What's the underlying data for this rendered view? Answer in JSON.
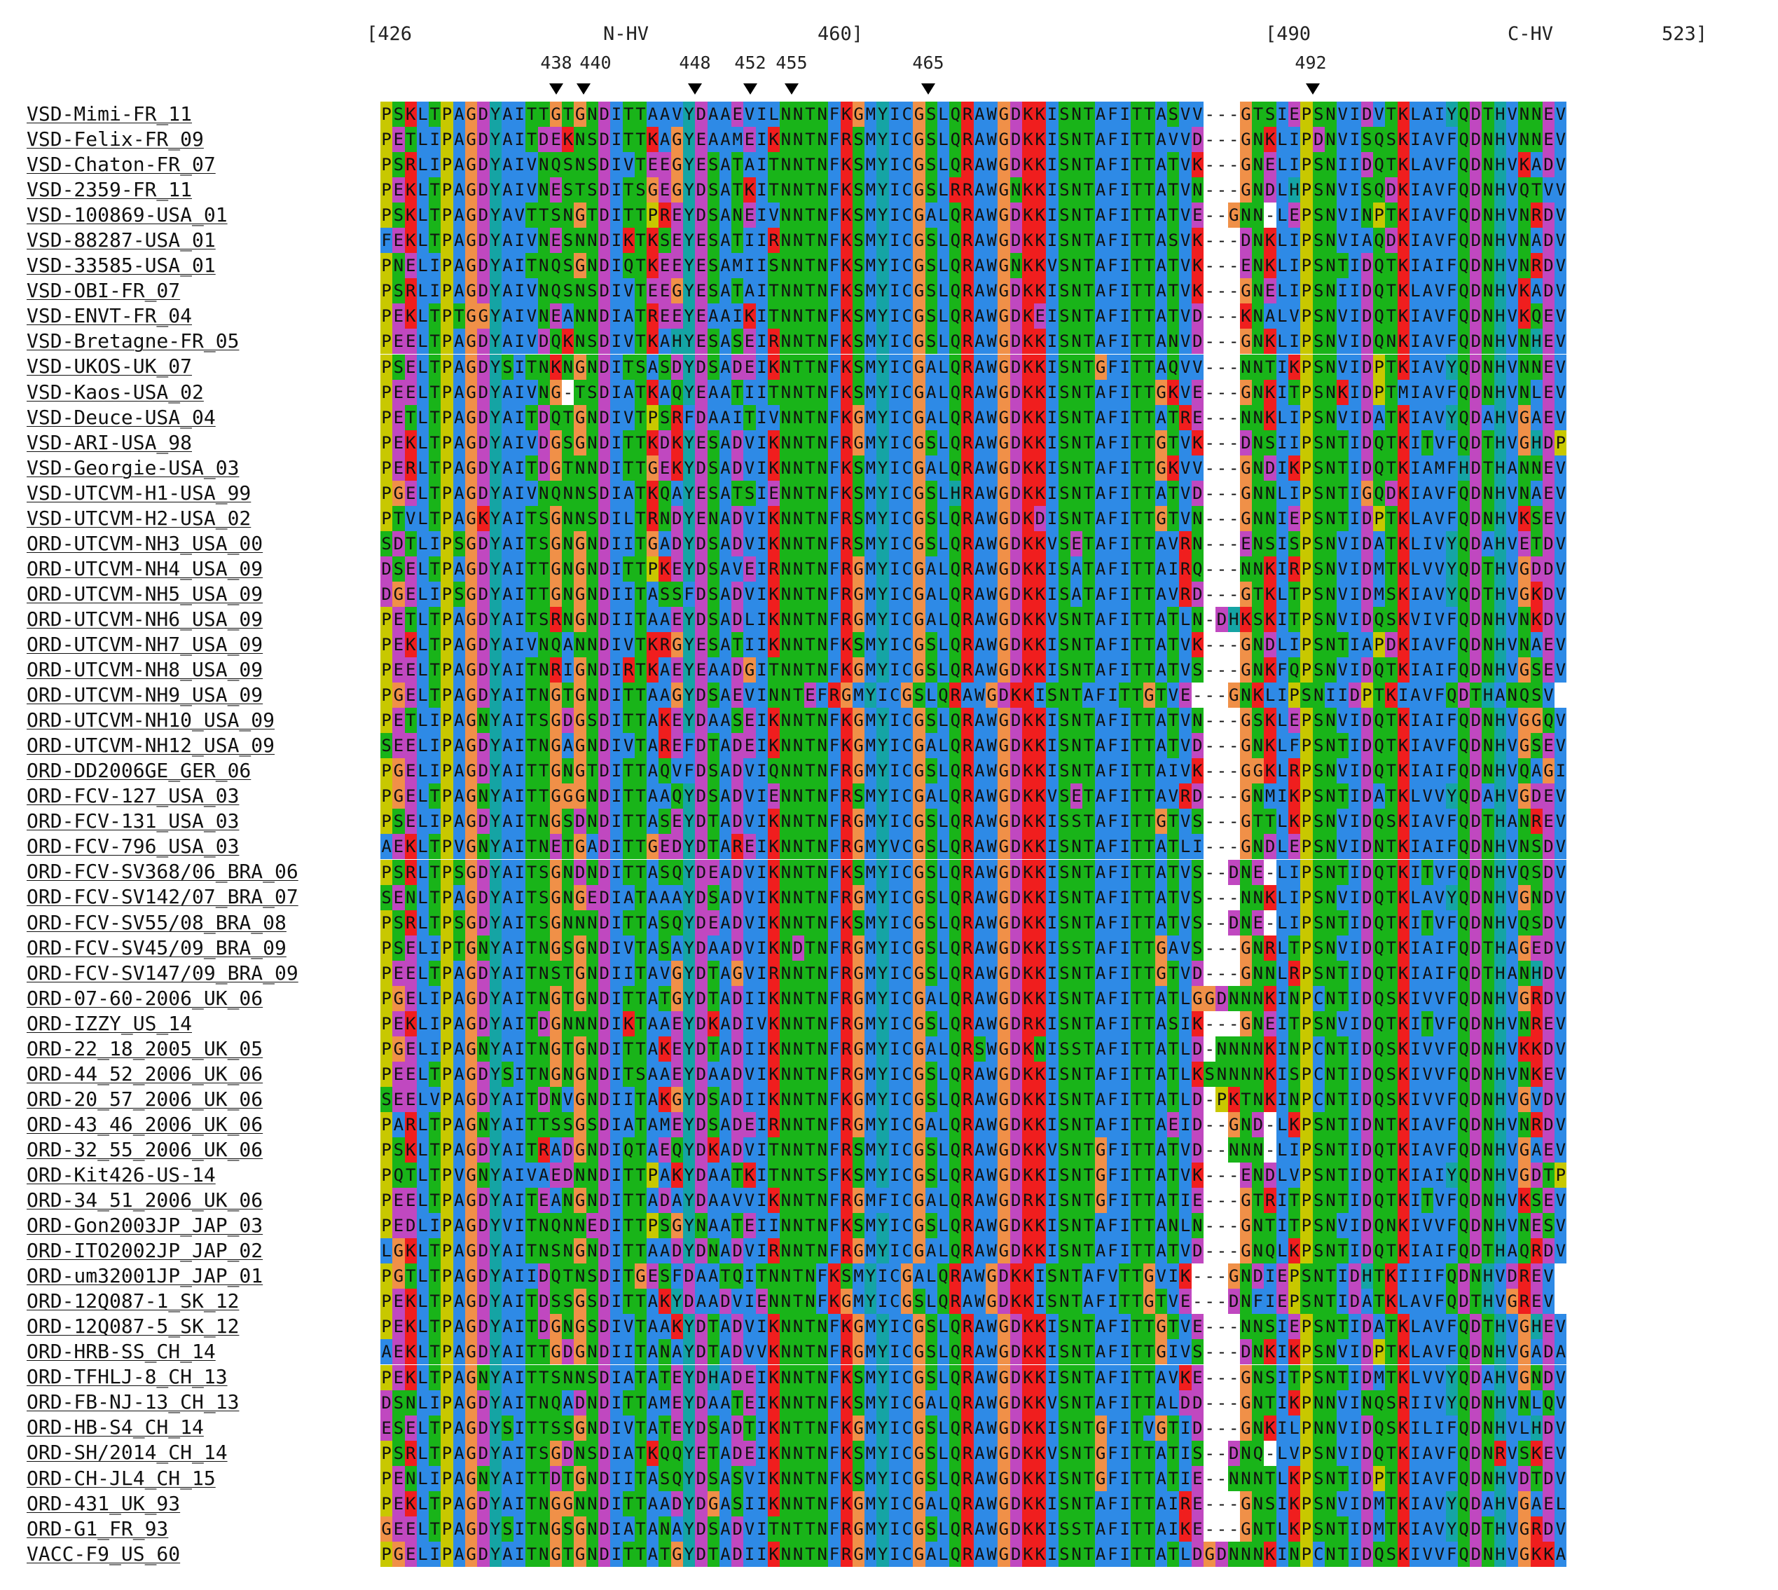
{
  "header": {
    "range_start": "[426",
    "region1": "N-HV",
    "range1_end": "460]",
    "range2_start": "[490",
    "region2": "C-HV",
    "range_end": "523]",
    "markers": [
      "438",
      "440",
      "448",
      "452",
      "455",
      "465",
      "492"
    ]
  },
  "sequences": [
    {
      "name": "VSD-Mimi-FR_11",
      "seq": "PSKLTPAGDYAITTGTGNDITTAAVYDAAEVILNNTNFKGMYICGSLQRAWGDKKISNTAFITTASVV---GTSIEPSNVIDVTKLAIYQDTHVNNEV"
    },
    {
      "name": "VSD-Felix-FR_09",
      "seq": "PETLIPAGDYAITDEKNSDITTKAGYEAAMEIKNNTNFRSMYICGSLQRAWGDKKISNTAFITTAVVD---GNKLIPDNVISQSKIAVFQDNHVNNEV"
    },
    {
      "name": "VSD-Chaton-FR_07",
      "seq": "PSRLIPAGDYAIVNQSNSDIVTEEGYESATAITNNTNFKSMYICGSLQRAWGDKKISNTAFITTATVK---GNELIPSNIIDQTKLAVFQDNHVKADV"
    },
    {
      "name": "VSD-2359-FR_11",
      "seq": "PEKLTPAGDYAIVNESTSDITSGEGYDSATKITNNTNFKSMYICGSLRRAWGNKKISNTAFITTATVN---GNDLHPSNVISQDKIAVFQDNHVQTVV"
    },
    {
      "name": "VSD-100869-USA_01",
      "seq": "PSKLTPAGDYAVTTSNGTDITTPREYDSANEIVNNTNFKSMYICGALQRAWGDKKISNTAFITTATVE--GNN-LEPSNVINPTKIAVFQDNHVNRDV"
    },
    {
      "name": "VSD-88287-USA_01",
      "seq": "FEKLTPAGDYAIVNESNNDIKTKSEYESATIIRNNTNFKSMYICGSLQRAWGDKKISNTAFITTASVK---DNKLIPSNVIAQDKIAVFQDNHVNADV"
    },
    {
      "name": "VSD-33585-USA_01",
      "seq": "PNELIPAGDYAITNQSGNDIQTKEEYESAMIISNNTNFKSMYICGSLQRAWGNKKVSNTAFITTATVK---ENKLIPSNTIDQTKIAIFQDNHVNRDV"
    },
    {
      "name": "VSD-OBI-FR_07",
      "seq": "PSRLIPAGDYAIVNQSNSDIVTEEGYESATAITNNTNFKSMYICGSLQRAWGDKKISNTAFITTATVK---GNELIPSNIIDQTKLAVFQDNHVKADV"
    },
    {
      "name": "VSD-ENVT-FR_04",
      "seq": "PEKLTPTGGYAIVNEANNDIATREEYEAAIKITNNTNFKSMYICGSLQRAWGDKEISNTAFITTATVD---KNALVPSNVIDQTKIAVFQDNHVKQEV"
    },
    {
      "name": "VSD-Bretagne-FR_05",
      "seq": "PEELTPAGDYAIVDQKNSDIVTKAHYESASEIRNNTNFKSMYICGSLQRAWGDKKISNTAFITTANVD---GNKLIPSNVIDQNKIAVFQDNHVNHEV"
    },
    {
      "name": "VSD-UKOS-UK_07",
      "seq": "PSELTPAGDYSITNKNGNDITSASDYDSADEIKNTTNFKSMYICGALQRAWGDKKISNTGFITTAQVV---NNTIKPSNVIDPTKIAVYQDNHVNNEV"
    },
    {
      "name": "VSD-Kaos-USA_02",
      "seq": "PEELTPAGDYAIVNG-TSDIATKAQYEAATIITNNTNFKSMYICGALQRAWGDKKISNTAFITTGKVE---GNKITPSNKIDPTMIAVFQDNHVNLEV"
    },
    {
      "name": "VSD-Deuce-USA_04",
      "seq": "PETLTPAGDYAITDQTGNDIVTPSRFDAAITIVNNTNFKGMYICGALQRAWGDKKISNTAFITTATRE---NNKLIPSNVIDATKIAVYQDAHVGAEV"
    },
    {
      "name": "VSD-ARI-USA_98",
      "seq": "PEKLTPAGDYAIVDGSGNDITTKDKYESADVIKNNTNFRGMYICGSLQRAWGDKKISNTAFITTGTVK---DNSIIPSNTIDQTKITVFQDTHVGHDP"
    },
    {
      "name": "VSD-Georgie-USA_03",
      "seq": "PERLTPAGDYAITDGTNNDITTGEKYDSADVIKNNTNFKSMYICGALQRAWGDKKISNTAFITTGKVV---GNDIKPSNTIDQTKIAMFHDTHANNEV"
    },
    {
      "name": "VSD-UTCVM-H1-USA_99",
      "seq": "PGELTPAGDYAIVNQNNSDIATKQAYESATSIENNTNFKSMYICGSLHRAWGDKKISNTAFITTATVD---GNNLIPSNTIGQDKIAVFQDNHVNAEV"
    },
    {
      "name": "VSD-UTCVM-H2-USA_02",
      "seq": "PTVLTPAGKYAITSGNNSDILTRNDYENADVIKNNTNFRSMYICGSLQRAWGDKDISNTAFITTGTVN---GNNIEPSNTIDPTKLAVFQDNHVKSEV"
    },
    {
      "name": "ORD-UTCVM-NH3_USA_00",
      "seq": "SDTLIPSGDYAITSGNGNDIITGADYDSADVIKNNTNFRSMYICGSLQRAWGDKKVSETAFITTAVRN---ENSISPSNVIDATKLIVYQDAHVETDV"
    },
    {
      "name": "ORD-UTCVM-NH4_USA_09",
      "seq": "DSELTPAGDYAITTGNGNDITTPKEYDSAVEIRNNTNFRGMYICGALQRAWGDKKISATAFITTAIRQ---NNKIRPSNVIDMTKLVVYQDTHVGDDV"
    },
    {
      "name": "ORD-UTCVM-NH5_USA_09",
      "seq": "DGELIPSGDYAITTGNGNDIITASSFDSADVIKNNTNFRGMYICGALQRAWGDKKISATAFITTAVRD---GTKLTPSNVIDMSKIAVYQDTHVGKDV"
    },
    {
      "name": "ORD-UTCVM-NH6_USA_09",
      "seq": "PETLTPAGDYAITSRNGNDIITAAEYDSADLIKNNTNFRGMYICGALQRAWGDKKVSNTAFITTATLN-DHKSKITPSNVIDQSKVIVFQDNHVNKDV"
    },
    {
      "name": "ORD-UTCVM-NH7_USA_09",
      "seq": "PEKLTPAGDYAIVNQANNDIVTKRGYESATIIKNNTNFKSMYICGSLQRAWGDKKISNTAFITTATVK---GNDLIPSNTIAPDKIAVFQDNHVNAEV"
    },
    {
      "name": "ORD-UTCVM-NH8_USA_09",
      "seq": "PEELTPAGDYAITNRIGNDIRTKAEYEAADGITNNTNFKGMYICGSLQRAWGDKKISNTAFITTATVS---GNKFQPSNVIDQTKIAIFQDNHVGSEV"
    },
    {
      "name": "ORD-UTCVM-NH9_USA_09",
      "seq": "PGELTPAGDYAITNGTGNDITTAAGYDSAEVINNTEFRGMYICGSLQRAWGDKKISNTAFITTGTVE---GNKLIPSNIIDPTKIAVFQDTHANQSV"
    },
    {
      "name": "ORD-UTCVM-NH10_USA_09",
      "seq": "PETLIPAGNYAITSGDGSDITTAKEYDAASEIKNNTNFKGMYICGSLQRAWGDKKISNTAFITTATVN---GSKLEPSNVIDQTKIAIFQDNHVGGQV"
    },
    {
      "name": "ORD-UTCVM-NH12_USA_09",
      "seq": "SEELIPAGDYAITNGAGNDIVTAREFDTADEIKNNTNFKGMYICGALQRAWGDKKISNTAFITTATVD---GNKLFPSNTIDQTKIAVFQDNHVGSEV"
    },
    {
      "name": "ORD-DD2006GE_GER_06",
      "seq": "PGELIPAGDYAITTGNGTDITTAQVFDSADVIQNNTNFRGMYICGSLQRAWGDKKISNTAFITTAIVK---GGKLRPSNVIDQTKIAIFQDNHVQAGI"
    },
    {
      "name": "ORD-FCV-127_USA_03",
      "seq": "PGELTPAGNYAITTGGGNDITTAAQYDSADVIENNTNFRSMYICGALQRAWGDKKVSETAFITTAVRD---GNMIKPSNTIDATKLVVYQDAHVGDEV"
    },
    {
      "name": "ORD-FCV-131_USA_03",
      "seq": "PSELIPAGDYAITNGSDNDITTASEYDTADVIKNNTNFRGMYICGSLQRAWGDKKISSTAFITTGTVS---GTTLKPSNVIDQSKIAVFQDTHANREV"
    },
    {
      "name": "ORD-FCV-796_USA_03",
      "seq": "AEKLTPVGNYAITNETGADITTGEDYDTAREIKNNTNFRGMYVCGSLQRAWGDKKISNTAFITTATLI---GNDLEPSNVIDNTKIAIFQDNHVNSDV"
    },
    {
      "name": "ORD-FCV-SV368/06_BRA_06",
      "seq": "PSRLTPSGDYAITSGNDNDITTASQYDEADVIKNNTNFKSMYICGSLQRAWGDKKISNTAFITTATVS--DNE-LIPSNTIDQTKITVFQDNHVQSDV"
    },
    {
      "name": "ORD-FCV-SV142/07_BRA_07",
      "seq": "SENLTPAGDYAITSGNGEDIATAAAYDSADVIKNNTNFRGMYICGSLQRAWGDKKISNTAFITTATVS---NNKLIPSNVIDQTKLAVYQDNHVGNDV"
    },
    {
      "name": "ORD-FCV-SV55/08_BRA_08",
      "seq": "PSRLTPSGDYAITSGNNNDITTASQYDEADVIKNNTNFKSMYICGSLQRAWGDKKISNTAFITTATVS--DNE-LIPSNTIDQTKITVFQDNHVQSDV"
    },
    {
      "name": "ORD-FCV-SV45/09_BRA_09",
      "seq": "PSELIPTGNYAITNGSGNDIVTASAYDAADVIKNDTNFRGMYICGSLQRAWGDKKISSTAFITTGAVS---GNRLTPSNVIDQTKIAIFQDTHAGEDV"
    },
    {
      "name": "ORD-FCV-SV147/09_BRA_09",
      "seq": "PEELTPAGDYAITNSTGNDIITAVGYDTAGVIRNNTNFRGMYICGSLQRAWGDKKISNTAFITTGTVD---GNNLRPSNTIDQTKIAIFQDTHANHDV"
    },
    {
      "name": "ORD-07-60-2006_UK_06",
      "seq": "PGELIPAGDYAITNGTGNDITTATGYDTADIIKNNTNFRGMYICGALQRAWGDKKISNTAFITTATLGGDNNNKINPCNTIDQSKIVVFQDNHVGRDV"
    },
    {
      "name": "ORD-IZZY_US_14",
      "seq": "PEKLIPAGDYAITDGNNNDIKTAAEYDKADIVKNNTNFRGMYICGSLQRAWGDRKISNTAFITTASIK---GNEITPSNVIDQTKITVFQDNHVNREV"
    },
    {
      "name": "ORD-22_18_2005_UK_05",
      "seq": "PGELIPAGNYAITNGTGNDITTAKEYDTADIIKNNTNFRGMYICGALQRSWGDKNISSTAFITTATLD-NNNNKINPCNTIDQSKIVVFQDNHVKKDV"
    },
    {
      "name": "ORD-44_52_2006_UK_06",
      "seq": "PEELTPAGDYSITNGNGNDITSAAEYDAADVIKNNTNFRGMYICGSLQRAWGDKKISNTAFITTATLKSNNNNKISPCNTIDQSKIVVFQDNHVNKEV"
    },
    {
      "name": "ORD-20_57_2006_UK_06",
      "seq": "SEELVPAGDYAITDNVGNDIITAKGYDSADIIKNNTNFKGMYICGSLQRAWGDKKISNTAFITTATLD-PKTNKINPCNTIDQSKIVVFQDNHVGVDV"
    },
    {
      "name": "ORD-43_46_2006_UK_06",
      "seq": "PARLTPAGNYAITTSSGSDIATAMEYDSADEIRNNTNFRGMYICGALQRAWGDKKISNTAFITTAEID--GND-LKPSNTIDNTKIAVFQDNHVNRDV"
    },
    {
      "name": "ORD-32_55_2006_UK_06",
      "seq": "PSKLTPAGDYAITRADGNDIQTAEQYDKADVITNNTNFRSMYICGSLQRAWGDKKVSNTGFITTATVD--NNN-LIPSNTIDQTKIAVFQDNHVGAEV"
    },
    {
      "name": "ORD-Kit426-US-14",
      "seq": "PQTLTPVGNYAIVAEDNNDITTPAKYDAATKITNNTSFKSMYICGSLQRAWGDKKISNTGFITTATVK---ENDLVPSNTIDQTKIAIYQDNHVGDTP"
    },
    {
      "name": "ORD-34_51_2006_UK_06",
      "seq": "PEELTPAGDYAITEANGNDITTADAYDAAVVIKNNTNFRGMFICGALQRAWGDRKISNTGFITTATIE---GTRITPSNTIDQTKITVFQDNHVKSEV"
    },
    {
      "name": "ORD-Gon2003JP_JAP_03",
      "seq": "PEDLIPAGDYVITNQNNEDITTPSGYNAATEIINNTNFKSMYICGSLQRAWGDKKISNTAFITTANLN---GNTITPSNVIDQNKIVVFQDNHVNESV"
    },
    {
      "name": "ORD-ITO2002JP_JAP_02",
      "seq": "LGKLTPAGDYAITNSNGNDITTAADYDNADVIRNNTNFRGMYICGALQRAWGDKKISNTAFITTATVD---GNQLKPSNTIDQTKIAIFQDTHAQRDV"
    },
    {
      "name": "ORD-um32001JP_JAP_01",
      "seq": "PGTLTPAGDYAIIDQTNSDITGESFDAATQITNNTNFKSMYICGALQRAWGDKKISNTAFVTTGVIK---GNDIEPSNTIDHTKIIIFQDNHVDREV"
    },
    {
      "name": "ORD-12Q087-1_SK_12",
      "seq": "PEKLTPAGDYAITDSSGSDITTAKYDAADVIENNTNFKGMYICGSLQRAWGDKKISNTAFITTGTVE---DNFIEPSNTIDATKLAVFQDTHVGREV"
    },
    {
      "name": "ORD-12Q087-5_SK_12",
      "seq": "PEKLTPAGDYAITDGNGSDIVTAAKYDTADVIKNNTNFKGMYICGSLQRAWGDKKISNTAFITTGTVE---NNSIEPSNTIDATKLAVFQDTHVGHEV"
    },
    {
      "name": "ORD-HRB-SS_CH_14",
      "seq": "AEKLTPAGDYAITTGDGNDIITANAYDTADVVKNNTNFRGMYICGSLQRAWGDKKISNTAFITTGIVS---DNKIKPSNVIDPTKLAVFQDNHVGADA"
    },
    {
      "name": "ORD-TFHLJ-8_CH_13",
      "seq": "PEKLTPAGNYAITTSNNSDIATATEYDHADEIKNNTNFKSMYICGSLQRAWGDKKISNTAFITTAVKE---GNSITPSNTIDMTKLVVYQDAHVGNDV"
    },
    {
      "name": "ORD-FB-NJ-13_CH_13",
      "seq": "DSNLIPAGDYAITNQADNDITTAMEYDAATEIKNNTNFKSMYICGALQRAWGDKKVSNTAFITTALDD---GNTIKPNNVINQSRIIVYQDNHVNLQV"
    },
    {
      "name": "ORD-HB-S4_CH_14",
      "seq": "ESELTPAGDYSITTSSGNDIVTATEYDSADTIKNTTNFKGMYICGSLQRAWGDKKISNTGFITVGTID---GNKILPNNVIDQSKILIFQDNHVLHDV"
    },
    {
      "name": "ORD-SH/2014_CH_14",
      "seq": "PSRLTPAGDYAITSGDNSDIATKQQYETADEIKNNTNFKSMYICGSLQRAWGDKKVSNTGFITTATIS--DNQ-LVPSNVIDQTKIAVFQDNRVSKEV"
    },
    {
      "name": "ORD-CH-JL4_CH_15",
      "seq": "PENLIPAGNYAITTDTGNDIITASQYDSASVIKNNTNFKSMYICGSLQRAWGDKKISNTGFITTATIE--NNNTLKPSNTIDPTKIAVFQDNHVDTDV"
    },
    {
      "name": "ORD-431_UK_93",
      "seq": "PEKLTPAGDYAITNGGNNDITTAADYDGASIIKNNTNFKGMYICGALQRAWGDKKISNTAFITTAIRE---GNSIKPSNVIDMTKIAVYQDAHVGAEL"
    },
    {
      "name": "ORD-G1_FR_93",
      "seq": "GEELTPAGDYSITNGSGNDIATANAYDSADVITNTTNFRGMYICGSLQRAWGDKKISSTAFITTAIKE---GNTLKPSNTIDMTKIAVYQDTHVGRDV"
    },
    {
      "name": "VACC-F9_US_60",
      "seq": "PGELIPAGDYAITNGTGNDITTATGYDTADIIKNNTNFRGMYICGALQRAWGDKKISNTAFITTATLDGDNNNKINPCNTIDQSKIVVFQDNHVGKKA"
    }
  ]
}
